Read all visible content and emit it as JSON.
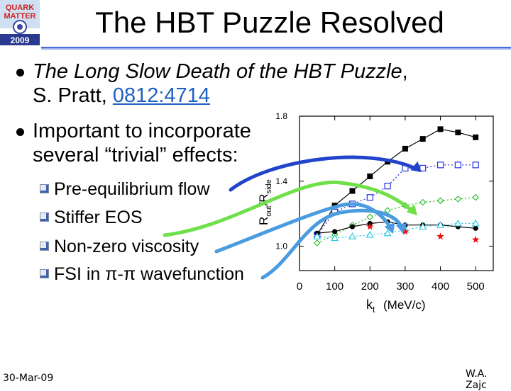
{
  "slide": {
    "title": "The HBT Puzzle Resolved",
    "logo_text": [
      "QUARK",
      "MATTER",
      "2009"
    ],
    "bullets": [
      {
        "italic": "The Long Slow Death of the HBT Puzzle",
        "tail": ",",
        "line2_prefix": "S. Pratt, ",
        "link": "0812:4714"
      },
      {
        "line1": "Important to incorporate",
        "line2": "several “trivial” effects:"
      }
    ],
    "sub_bullets": [
      "Pre-equilibrium flow",
      "Stiffer EOS",
      "Non-zero viscosity",
      "FSI in π-π wavefunction"
    ],
    "footer_date": "30-Mar-09",
    "footer_author": "W.A. Zajc"
  },
  "colors": {
    "arrow_blue": "#2244cc",
    "arrow_green": "#6fe04a",
    "arrow_cyan": "#4a9be0",
    "series_black": "#000000",
    "series_blue": "#2233dd",
    "series_green": "#22bb22",
    "series_cyan": "#22c8e0",
    "series_red": "#ee1111"
  },
  "chart_data": {
    "type": "line",
    "xlabel": "k",
    "xlabel_sub": "t",
    "xlabel_units": "(MeV/c)",
    "ylabel": "R",
    "ylabel_parts": [
      "out",
      "side"
    ],
    "xlim": [
      0,
      550
    ],
    "ylim": [
      0.85,
      1.8
    ],
    "xticks": [
      0,
      100,
      200,
      300,
      400,
      500
    ],
    "yticks": [
      1.0,
      1.4,
      1.8
    ],
    "series": [
      {
        "marker": "filled-square",
        "style": "solid",
        "color": "black",
        "x": [
          50,
          100,
          150,
          200,
          250,
          300,
          350,
          400,
          450,
          500
        ],
        "y": [
          1.07,
          1.25,
          1.34,
          1.43,
          1.52,
          1.6,
          1.66,
          1.72,
          1.7,
          1.67
        ]
      },
      {
        "marker": "open-square",
        "style": "dotted",
        "color": "blue",
        "x": [
          50,
          100,
          150,
          200,
          250,
          300,
          350,
          400,
          450,
          500
        ],
        "y": [
          1.07,
          1.21,
          1.26,
          1.3,
          1.37,
          1.48,
          1.48,
          1.5,
          1.5,
          1.5
        ]
      },
      {
        "marker": "open-diamond",
        "style": "dotted",
        "color": "green",
        "x": [
          50,
          100,
          150,
          200,
          250,
          300,
          350,
          400,
          450,
          500
        ],
        "y": [
          1.02,
          1.07,
          1.13,
          1.18,
          1.22,
          1.25,
          1.27,
          1.28,
          1.29,
          1.3
        ]
      },
      {
        "marker": "filled-circle",
        "style": "solid",
        "color": "black",
        "x": [
          50,
          100,
          150,
          200,
          250,
          300,
          350,
          400,
          450,
          500
        ],
        "y": [
          1.08,
          1.09,
          1.12,
          1.14,
          1.15,
          1.13,
          1.13,
          1.13,
          1.12,
          1.11
        ]
      },
      {
        "marker": "open-triangle",
        "style": "dotted",
        "color": "cyan",
        "x": [
          50,
          100,
          150,
          200,
          250,
          300,
          350,
          400,
          450,
          500
        ],
        "y": [
          1.06,
          1.05,
          1.06,
          1.07,
          1.08,
          1.1,
          1.12,
          1.13,
          1.14,
          1.14
        ]
      },
      {
        "marker": "star",
        "style": "none",
        "color": "red",
        "x": [
          200,
          300,
          400,
          500
        ],
        "y": [
          1.12,
          1.09,
          1.06,
          1.04
        ]
      }
    ]
  }
}
